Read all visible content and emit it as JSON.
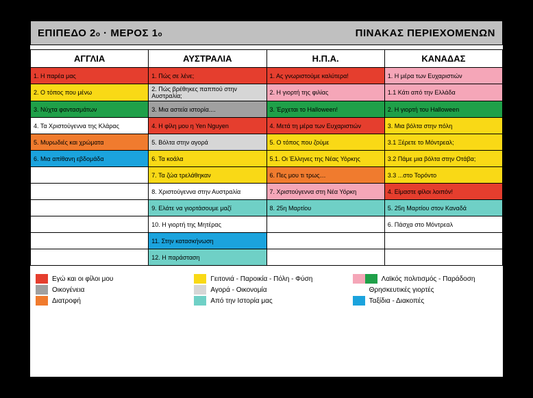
{
  "colors": {
    "red": "#e53e2e",
    "gray": "#a0a0a0",
    "orange": "#f07b2e",
    "yellow": "#f9d916",
    "lightgray": "#d6d6d6",
    "teal": "#6fd0c6",
    "pink": "#f5a6b8",
    "green": "#1fa049",
    "white": "#ffffff",
    "blue": "#1ba3dd"
  },
  "header": {
    "left_main": "ΕΠΙΠΕΔΟ 2",
    "left_sub1": "ο",
    "left_sep": " · ",
    "left_main2": "ΜΕΡΟΣ 1",
    "left_sub2": "ο",
    "right": "ΠΙΝΑΚΑΣ ΠΕΡΙΕΧΟΜΕΝΩΝ"
  },
  "columns": [
    "ΑΓΓΛΙΑ",
    "ΑΥΣΤΡΑΛΙΑ",
    "Η.Π.Α.",
    "ΚΑΝΑΔΑΣ"
  ],
  "rows": [
    [
      {
        "t": "1. Η παρέα μας",
        "c": "red"
      },
      {
        "t": "1. Πώς σε λένε;",
        "c": "red"
      },
      {
        "t": "1. Ας γνωριστούμε καλύτερα!",
        "c": "red"
      },
      {
        "t": "1. Η μέρα των Ευχαριστιών",
        "c": "pink"
      }
    ],
    [
      {
        "t": "2. Ο τόπος που μένω",
        "c": "yellow"
      },
      {
        "t": "2. Πώς βρέθηκες παππού στην Αυστραλία;",
        "c": "lightgray"
      },
      {
        "t": "2. Η γιορτή της φιλίας",
        "c": "pink"
      },
      {
        "t": "1.1 Κάτι από την Ελλάδα",
        "c": "pink"
      }
    ],
    [
      {
        "t": "3. Νύχτα φαντασμάτων",
        "c": "green"
      },
      {
        "t": "3. Μια αστεία ιστορία....",
        "c": "gray"
      },
      {
        "t": "3. Έρχεται το Halloween!",
        "c": "green"
      },
      {
        "t": "2. Η γιορτή του Halloween",
        "c": "green"
      }
    ],
    [
      {
        "t": "4. Τα Χριστούγεννα της Κλάρας",
        "c": "white"
      },
      {
        "t": "4. Η φίλη μου η Yen Nguyen",
        "c": "red"
      },
      {
        "t": "4. Μετά τη μέρα των Ευχαριστιών",
        "c": "red"
      },
      {
        "t": "3. Μια βόλτα στην πόλη",
        "c": "yellow"
      }
    ],
    [
      {
        "t": "5. Μυρωδιές και χρώματα",
        "c": "orange"
      },
      {
        "t": "5. Βόλτα στην αγορά",
        "c": "lightgray"
      },
      {
        "t": "5. Ο τόπος που ζούμε",
        "c": "yellow"
      },
      {
        "t": "3.1 Ξέρετε το Μόντρεαλ;",
        "c": "yellow"
      }
    ],
    [
      {
        "t": "6. Μια απίθανη εβδομάδα",
        "c": "blue"
      },
      {
        "t": "6. Τα κοάλα",
        "c": "yellow"
      },
      {
        "t": "5.1. Οι Έλληνες της Νέας Υόρκης",
        "c": "yellow"
      },
      {
        "t": "3.2 Πάμε μια βόλτα στην Οτάβα;",
        "c": "yellow"
      }
    ],
    [
      {
        "t": "",
        "c": ""
      },
      {
        "t": "7. Τα ζώα τρελάθηκαν",
        "c": "yellow"
      },
      {
        "t": "6. Πες μου τι τρως…",
        "c": "orange"
      },
      {
        "t": "3.3 ...στο Τορόντο",
        "c": "yellow"
      }
    ],
    [
      {
        "t": "",
        "c": ""
      },
      {
        "t": "8. Χριστούγεννα στην Αυστραλία",
        "c": "white"
      },
      {
        "t": "7. Χριστούγεννα στη Νέα Υόρκη",
        "c": "pink"
      },
      {
        "t": "4. Είμαστε φίλοι λοιπόν!",
        "c": "red"
      }
    ],
    [
      {
        "t": "",
        "c": ""
      },
      {
        "t": "9. Ελάτε να γιορτάσουμε μαζί",
        "c": "teal"
      },
      {
        "t": "8. 25η Μαρτίου",
        "c": "teal"
      },
      {
        "t": "5. 25η Μαρτίου στον Καναδά",
        "c": "teal"
      }
    ],
    [
      {
        "t": "",
        "c": ""
      },
      {
        "t": "10. Η γιορτή της Μητέρας",
        "c": "white"
      },
      {
        "t": "",
        "c": ""
      },
      {
        "t": "6. Πάσχα στο Μόντρεαλ",
        "c": "white"
      }
    ],
    [
      {
        "t": "",
        "c": ""
      },
      {
        "t": "11. Στην κατασκήνωση",
        "c": "blue"
      },
      {
        "t": "",
        "c": ""
      },
      {
        "t": "",
        "c": ""
      }
    ],
    [
      {
        "t": "",
        "c": ""
      },
      {
        "t": "12. Η παράσταση",
        "c": "teal"
      },
      {
        "t": "",
        "c": ""
      },
      {
        "t": "",
        "c": ""
      }
    ]
  ],
  "legend": [
    {
      "swatches": [
        "red"
      ],
      "label": "Εγώ και οι φίλοι μου"
    },
    {
      "swatches": [
        "yellow"
      ],
      "label": "Γειτονιά - Παροικία - Πόλη - Φύση"
    },
    {
      "swatches": [
        "pink",
        "green"
      ],
      "label": "Λαϊκός πολιτισμός - Παράδοση"
    },
    {
      "swatches": [
        "gray"
      ],
      "label": "Οικογένεια"
    },
    {
      "swatches": [
        "lightgray"
      ],
      "label": "Αγορά - Οικονομία"
    },
    {
      "swatches": [
        "white"
      ],
      "label": "Θρησκευτικές γιορτές"
    },
    {
      "swatches": [
        "orange"
      ],
      "label": "Διατροφή"
    },
    {
      "swatches": [
        "teal"
      ],
      "label": "Από την Ιστορία μας"
    },
    {
      "swatches": [
        "blue"
      ],
      "label": "Ταξίδια - Διακοπές"
    }
  ]
}
